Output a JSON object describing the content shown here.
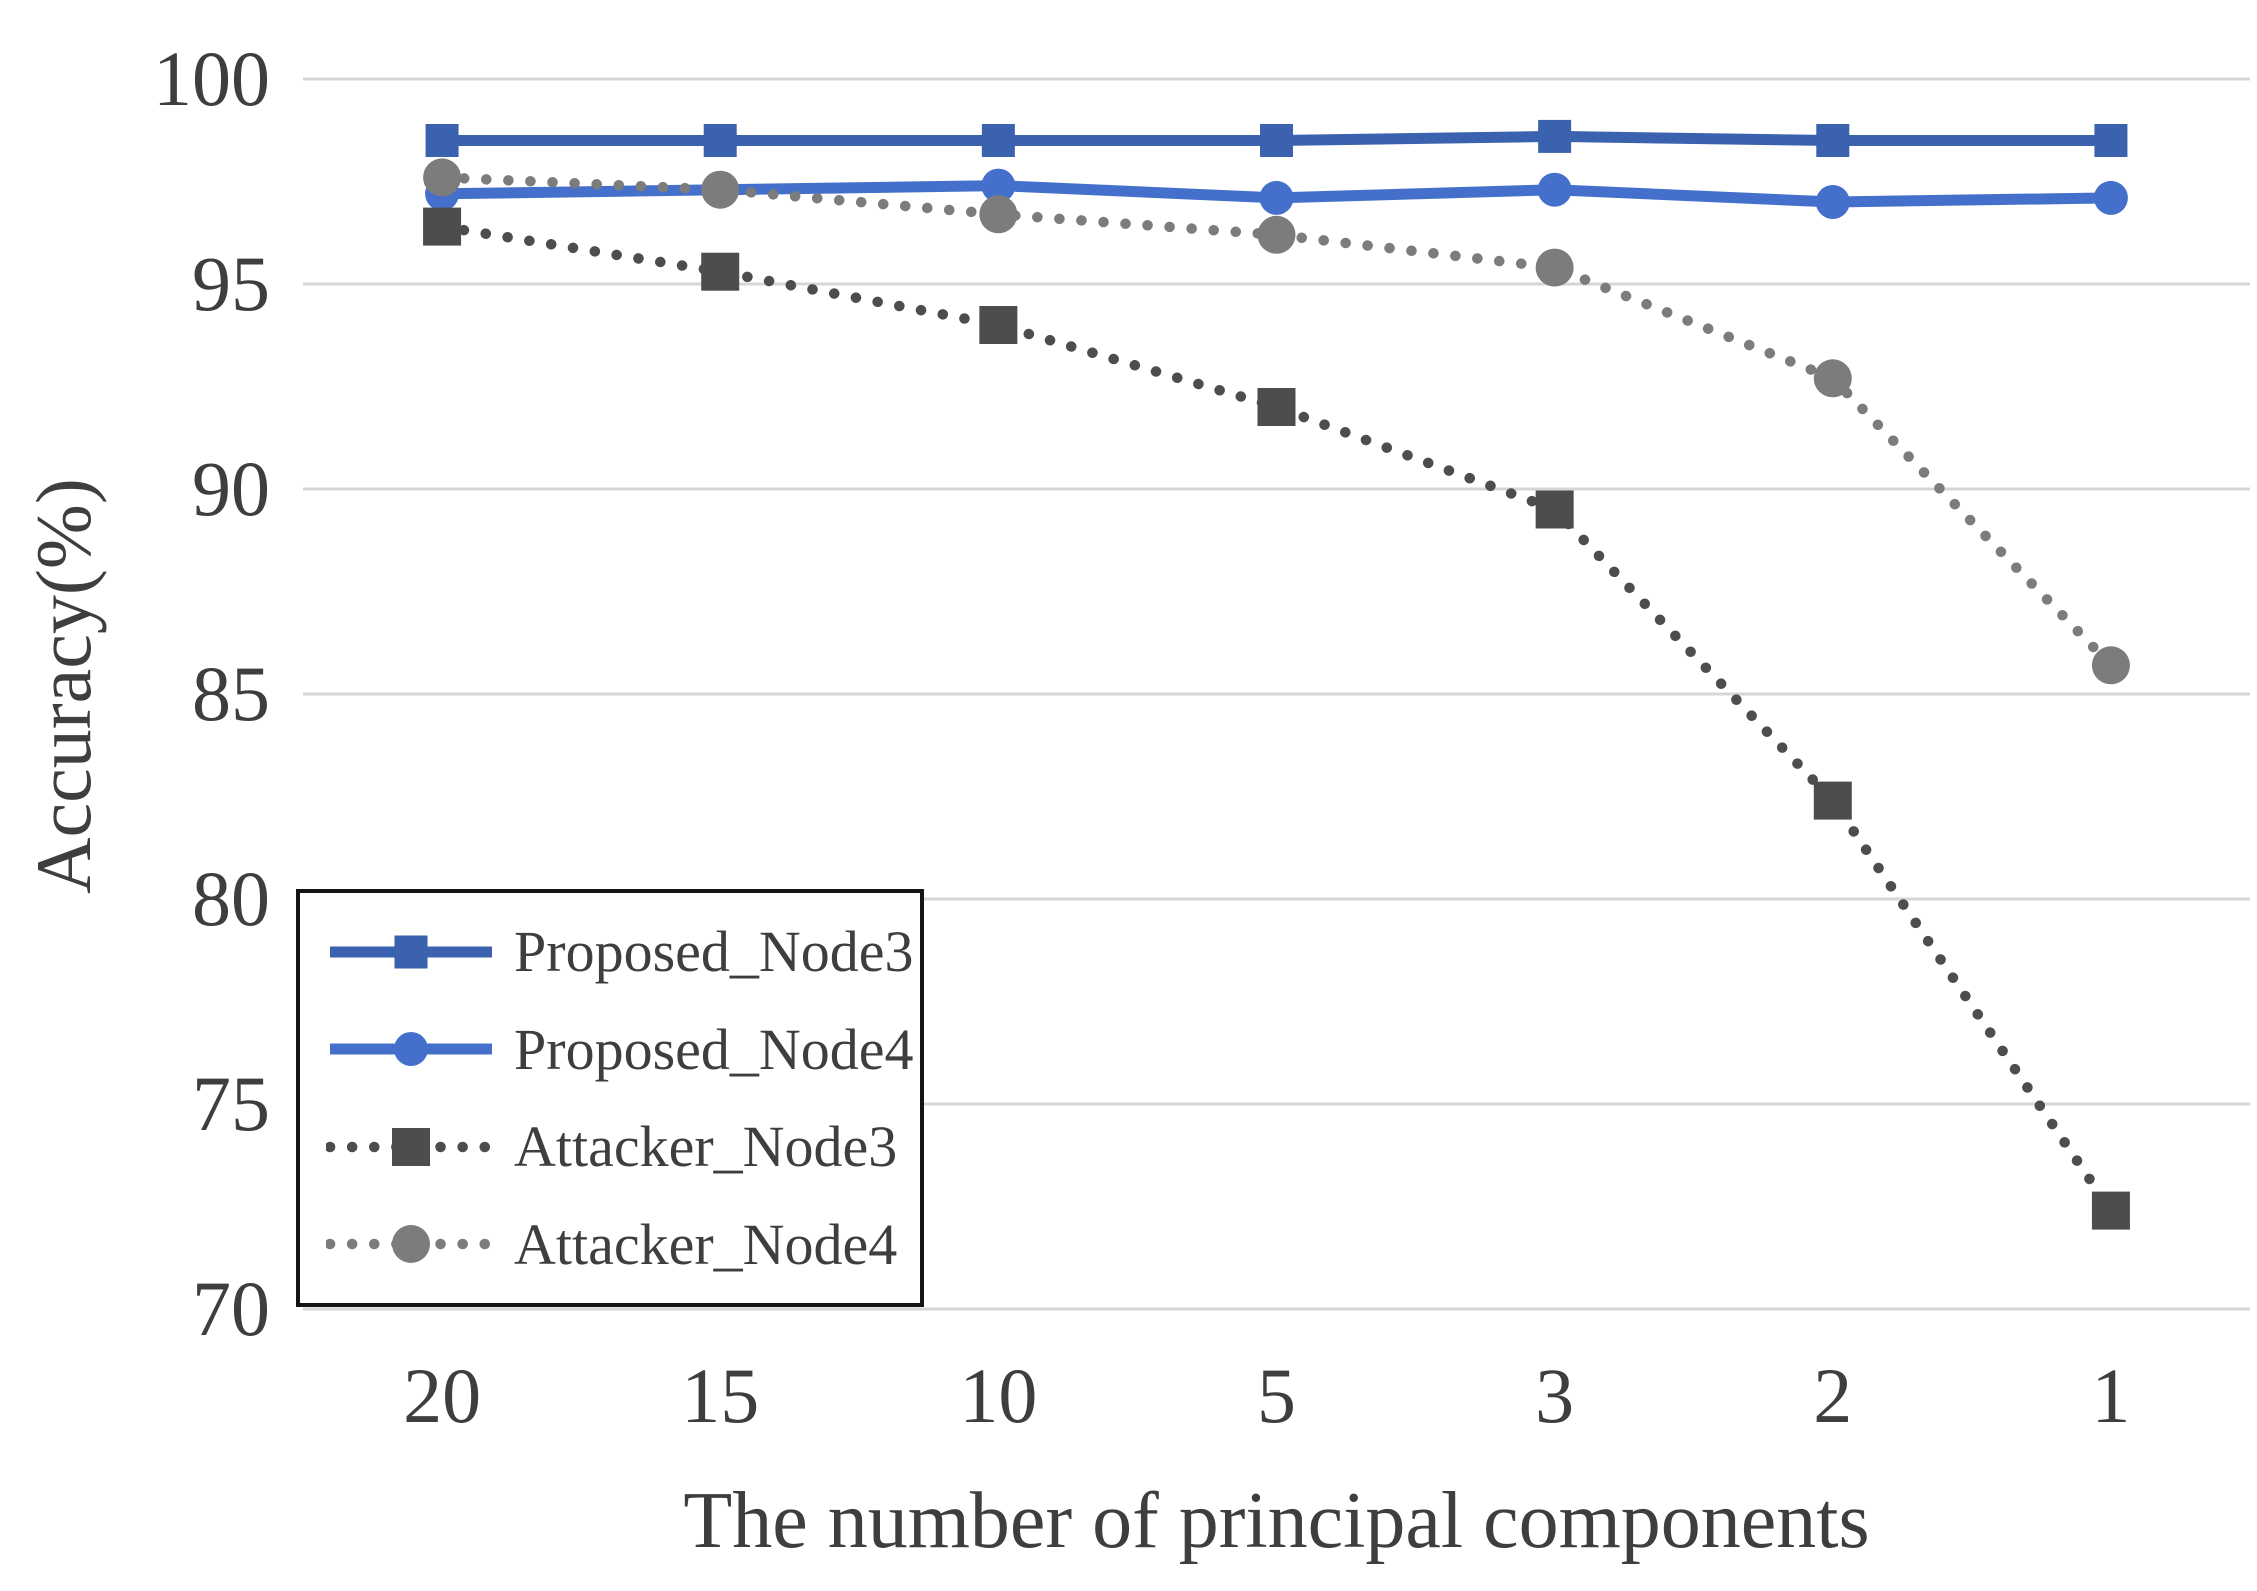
{
  "chart_data": {
    "type": "line",
    "title": "",
    "xlabel": "The number of principal components",
    "ylabel": "Accuracy(%)",
    "categories": [
      "20",
      "15",
      "10",
      "5",
      "3",
      "2",
      "1"
    ],
    "ylim": [
      70,
      100
    ],
    "yticks": [
      100,
      95,
      90,
      85,
      80,
      75,
      70
    ],
    "grid": "horizontal",
    "legend_position": "inside-bottom-left",
    "series": [
      {
        "name": "Proposed_Node3",
        "marker": "square",
        "line": "solid",
        "color": "#3A62AE",
        "values": [
          98.5,
          98.5,
          98.5,
          98.5,
          98.6,
          98.5,
          98.5
        ]
      },
      {
        "name": "Proposed_Node4",
        "marker": "circle",
        "line": "solid",
        "color": "#4470CC",
        "values": [
          97.2,
          97.3,
          97.4,
          97.1,
          97.3,
          97.0,
          97.1
        ]
      },
      {
        "name": "Attacker_Node3",
        "marker": "square",
        "line": "dotted",
        "color": "#4D4D4D",
        "values": [
          96.4,
          95.3,
          94.0,
          92.0,
          89.5,
          82.4,
          72.4
        ]
      },
      {
        "name": "Attacker_Node4",
        "marker": "circle",
        "line": "dotted",
        "color": "#7C7C7C",
        "values": [
          97.6,
          97.3,
          96.7,
          96.2,
          95.4,
          92.7,
          85.7
        ]
      }
    ],
    "colors": {
      "background": "#FFFFFF",
      "gridline": "#D6D6D6",
      "text": "#3E3E3E",
      "legend_border": "#141414"
    }
  }
}
